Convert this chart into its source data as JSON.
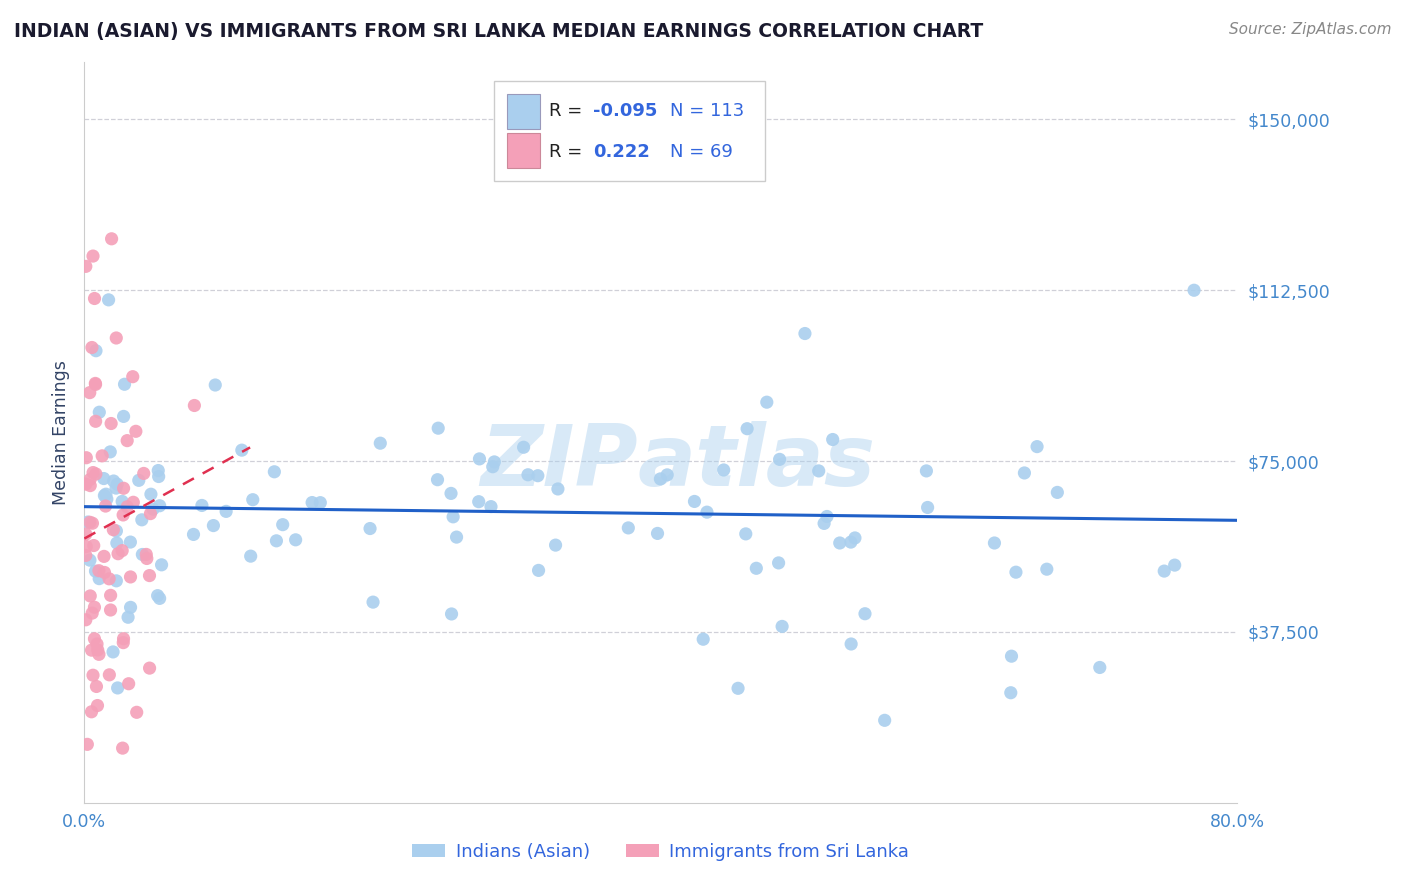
{
  "title": "INDIAN (ASIAN) VS IMMIGRANTS FROM SRI LANKA MEDIAN EARNINGS CORRELATION CHART",
  "source": "Source: ZipAtlas.com",
  "ylabel": "Median Earnings",
  "xlim": [
    0.0,
    0.8
  ],
  "ylim": [
    0,
    162500
  ],
  "yticks": [
    37500,
    75000,
    112500,
    150000
  ],
  "ytick_labels": [
    "$37,500",
    "$75,000",
    "$112,500",
    "$150,000"
  ],
  "xticks": [
    0.0,
    0.1,
    0.2,
    0.3,
    0.4,
    0.5,
    0.6,
    0.7,
    0.8
  ],
  "xtick_labels": [
    "0.0%",
    "",
    "",
    "",
    "",
    "",
    "",
    "",
    "80.0%"
  ],
  "blue_color": "#aacfee",
  "pink_color": "#f4a0b8",
  "trend_blue": "#2060c8",
  "trend_pink": "#e03050",
  "blue_n": 113,
  "pink_n": 69,
  "background_color": "#ffffff",
  "grid_color": "#d0d0d8",
  "title_color": "#1a1a2e",
  "tick_color": "#4488cc",
  "label_color": "#334466"
}
